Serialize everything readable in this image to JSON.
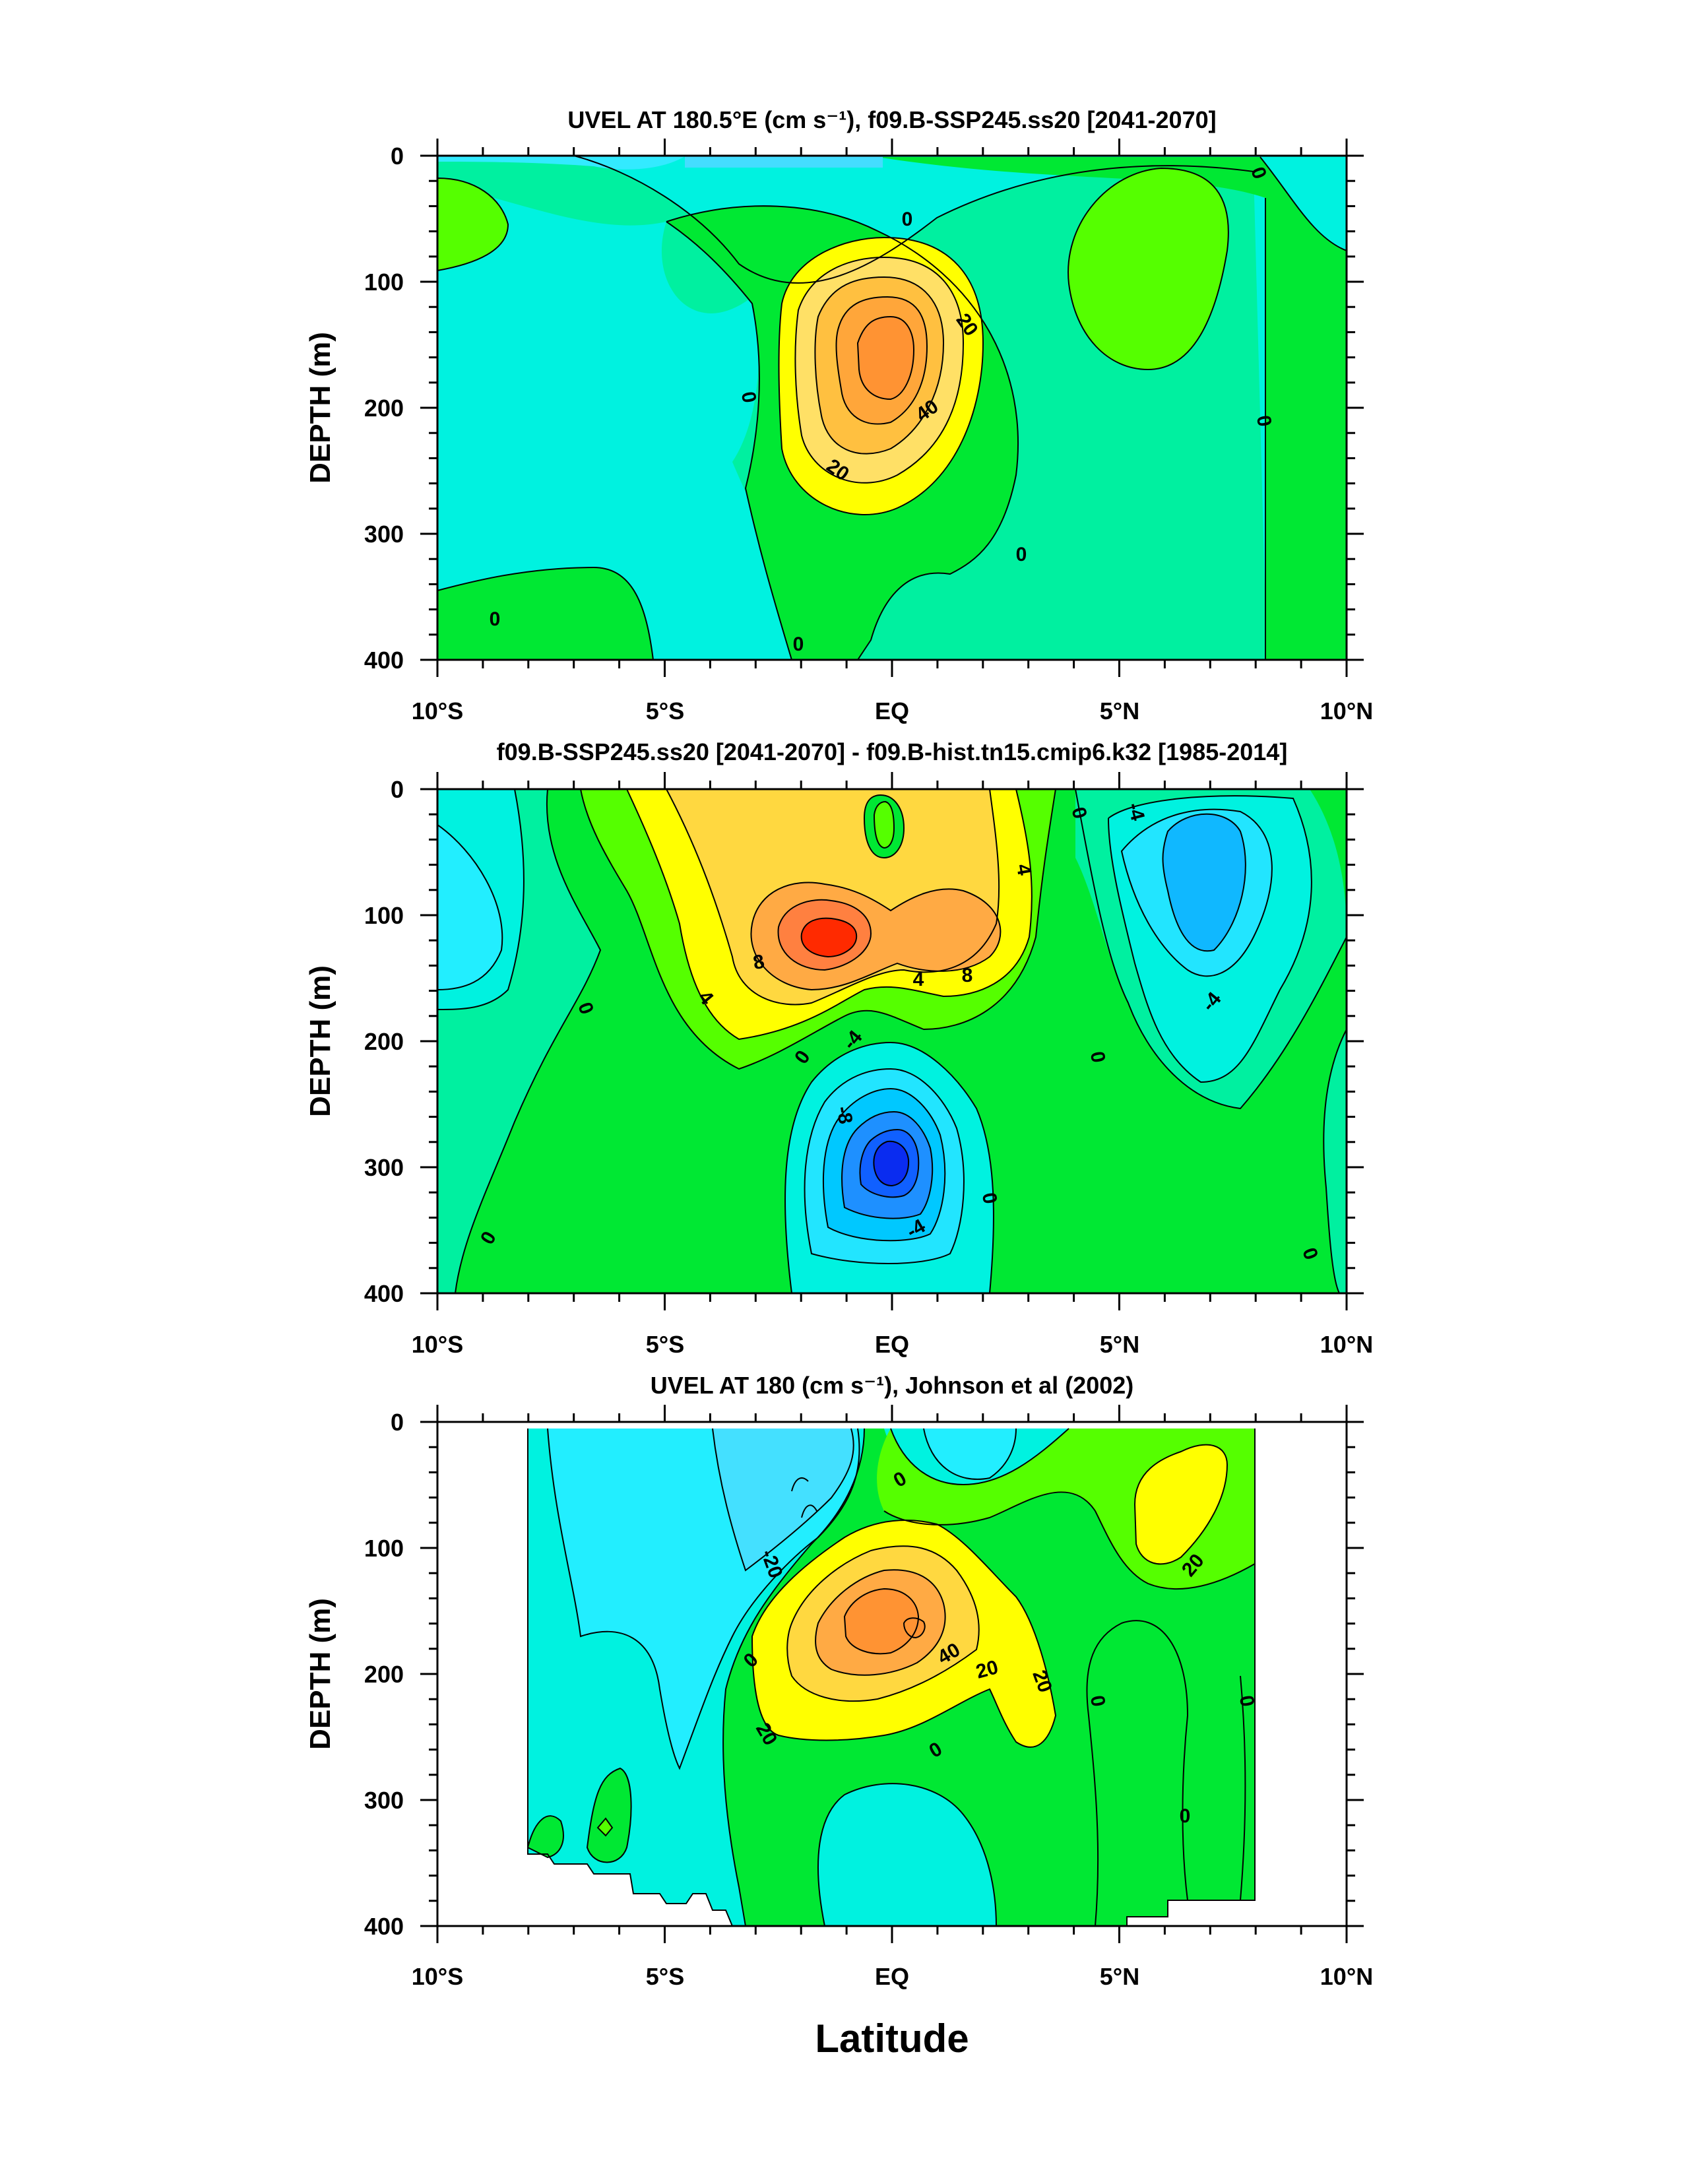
{
  "chart_data": [
    {
      "type": "heatmap",
      "title": "UVEL AT 180.5°E (cm s⁻¹), f09.B-SSP245.ss20 [2041-2070]",
      "ylabel": "DEPTH (m)",
      "xlabel": "",
      "x_ticks": [
        "10°S",
        "5°S",
        "EQ",
        "5°N",
        "10°N"
      ],
      "y_ticks": [
        "0",
        "100",
        "200",
        "300",
        "400"
      ],
      "xlim": [
        -10,
        10
      ],
      "ylim": [
        0,
        400
      ],
      "contour_labels": [
        "0",
        "0",
        "0",
        "0",
        "0",
        "0",
        "0",
        "20",
        "20",
        "40"
      ],
      "features": [
        {
          "kind": "eastward maximum",
          "lat": -0.1,
          "depth": 155,
          "value": 60
        },
        {
          "kind": "weak positive region",
          "lat": 4.5,
          "depth": 80,
          "value": 5
        },
        {
          "kind": "weak positive region",
          "lat": -9.5,
          "depth": 60,
          "value": 5
        }
      ]
    },
    {
      "type": "heatmap",
      "title": "f09.B-SSP245.ss20 [2041-2070] - f09.B-hist.tn15.cmip6.k32 [1985-2014]",
      "ylabel": "DEPTH (m)",
      "xlabel": "",
      "x_ticks": [
        "10°S",
        "5°S",
        "EQ",
        "5°N",
        "10°N"
      ],
      "y_ticks": [
        "0",
        "100",
        "200",
        "300",
        "400"
      ],
      "xlim": [
        -10,
        10
      ],
      "ylim": [
        0,
        400
      ],
      "contour_labels": [
        "0",
        "0",
        "0",
        "0",
        "0",
        "0",
        "0",
        "4",
        "4",
        "4",
        "8",
        "8",
        "-4",
        "-4",
        "-4",
        "-4",
        "-8"
      ],
      "features": [
        {
          "kind": "positive maximum",
          "lat": -1.2,
          "depth": 120,
          "value": 12
        },
        {
          "kind": "positive maximum",
          "lat": 1.2,
          "depth": 115,
          "value": 9
        },
        {
          "kind": "negative minimum",
          "lat": -0.1,
          "depth": 265,
          "value": -12
        },
        {
          "kind": "negative minimum",
          "lat": 6.5,
          "depth": 100,
          "value": -6
        }
      ]
    },
    {
      "type": "heatmap",
      "title": "UVEL AT 180 (cm s⁻¹), Johnson et al (2002)",
      "ylabel": "DEPTH (m)",
      "xlabel": "Latitude",
      "x_ticks": [
        "10°S",
        "5°S",
        "EQ",
        "5°N",
        "10°N"
      ],
      "y_ticks": [
        "0",
        "100",
        "200",
        "300",
        "400"
      ],
      "xlim": [
        -10,
        10
      ],
      "ylim": [
        0,
        400
      ],
      "data_extent_lat": [
        -8,
        8
      ],
      "contour_labels": [
        "0",
        "0",
        "0",
        "0",
        "0",
        "0",
        "20",
        "20",
        "20",
        "20",
        "-20",
        "40"
      ],
      "features": [
        {
          "kind": "eastward maximum",
          "lat": 0.5,
          "depth": 165,
          "value": 55
        },
        {
          "kind": "positive region",
          "lat": 6.5,
          "depth": 80,
          "value": 25
        },
        {
          "kind": "westward region",
          "lat": -2.5,
          "depth": 60,
          "value": -25
        }
      ]
    }
  ]
}
